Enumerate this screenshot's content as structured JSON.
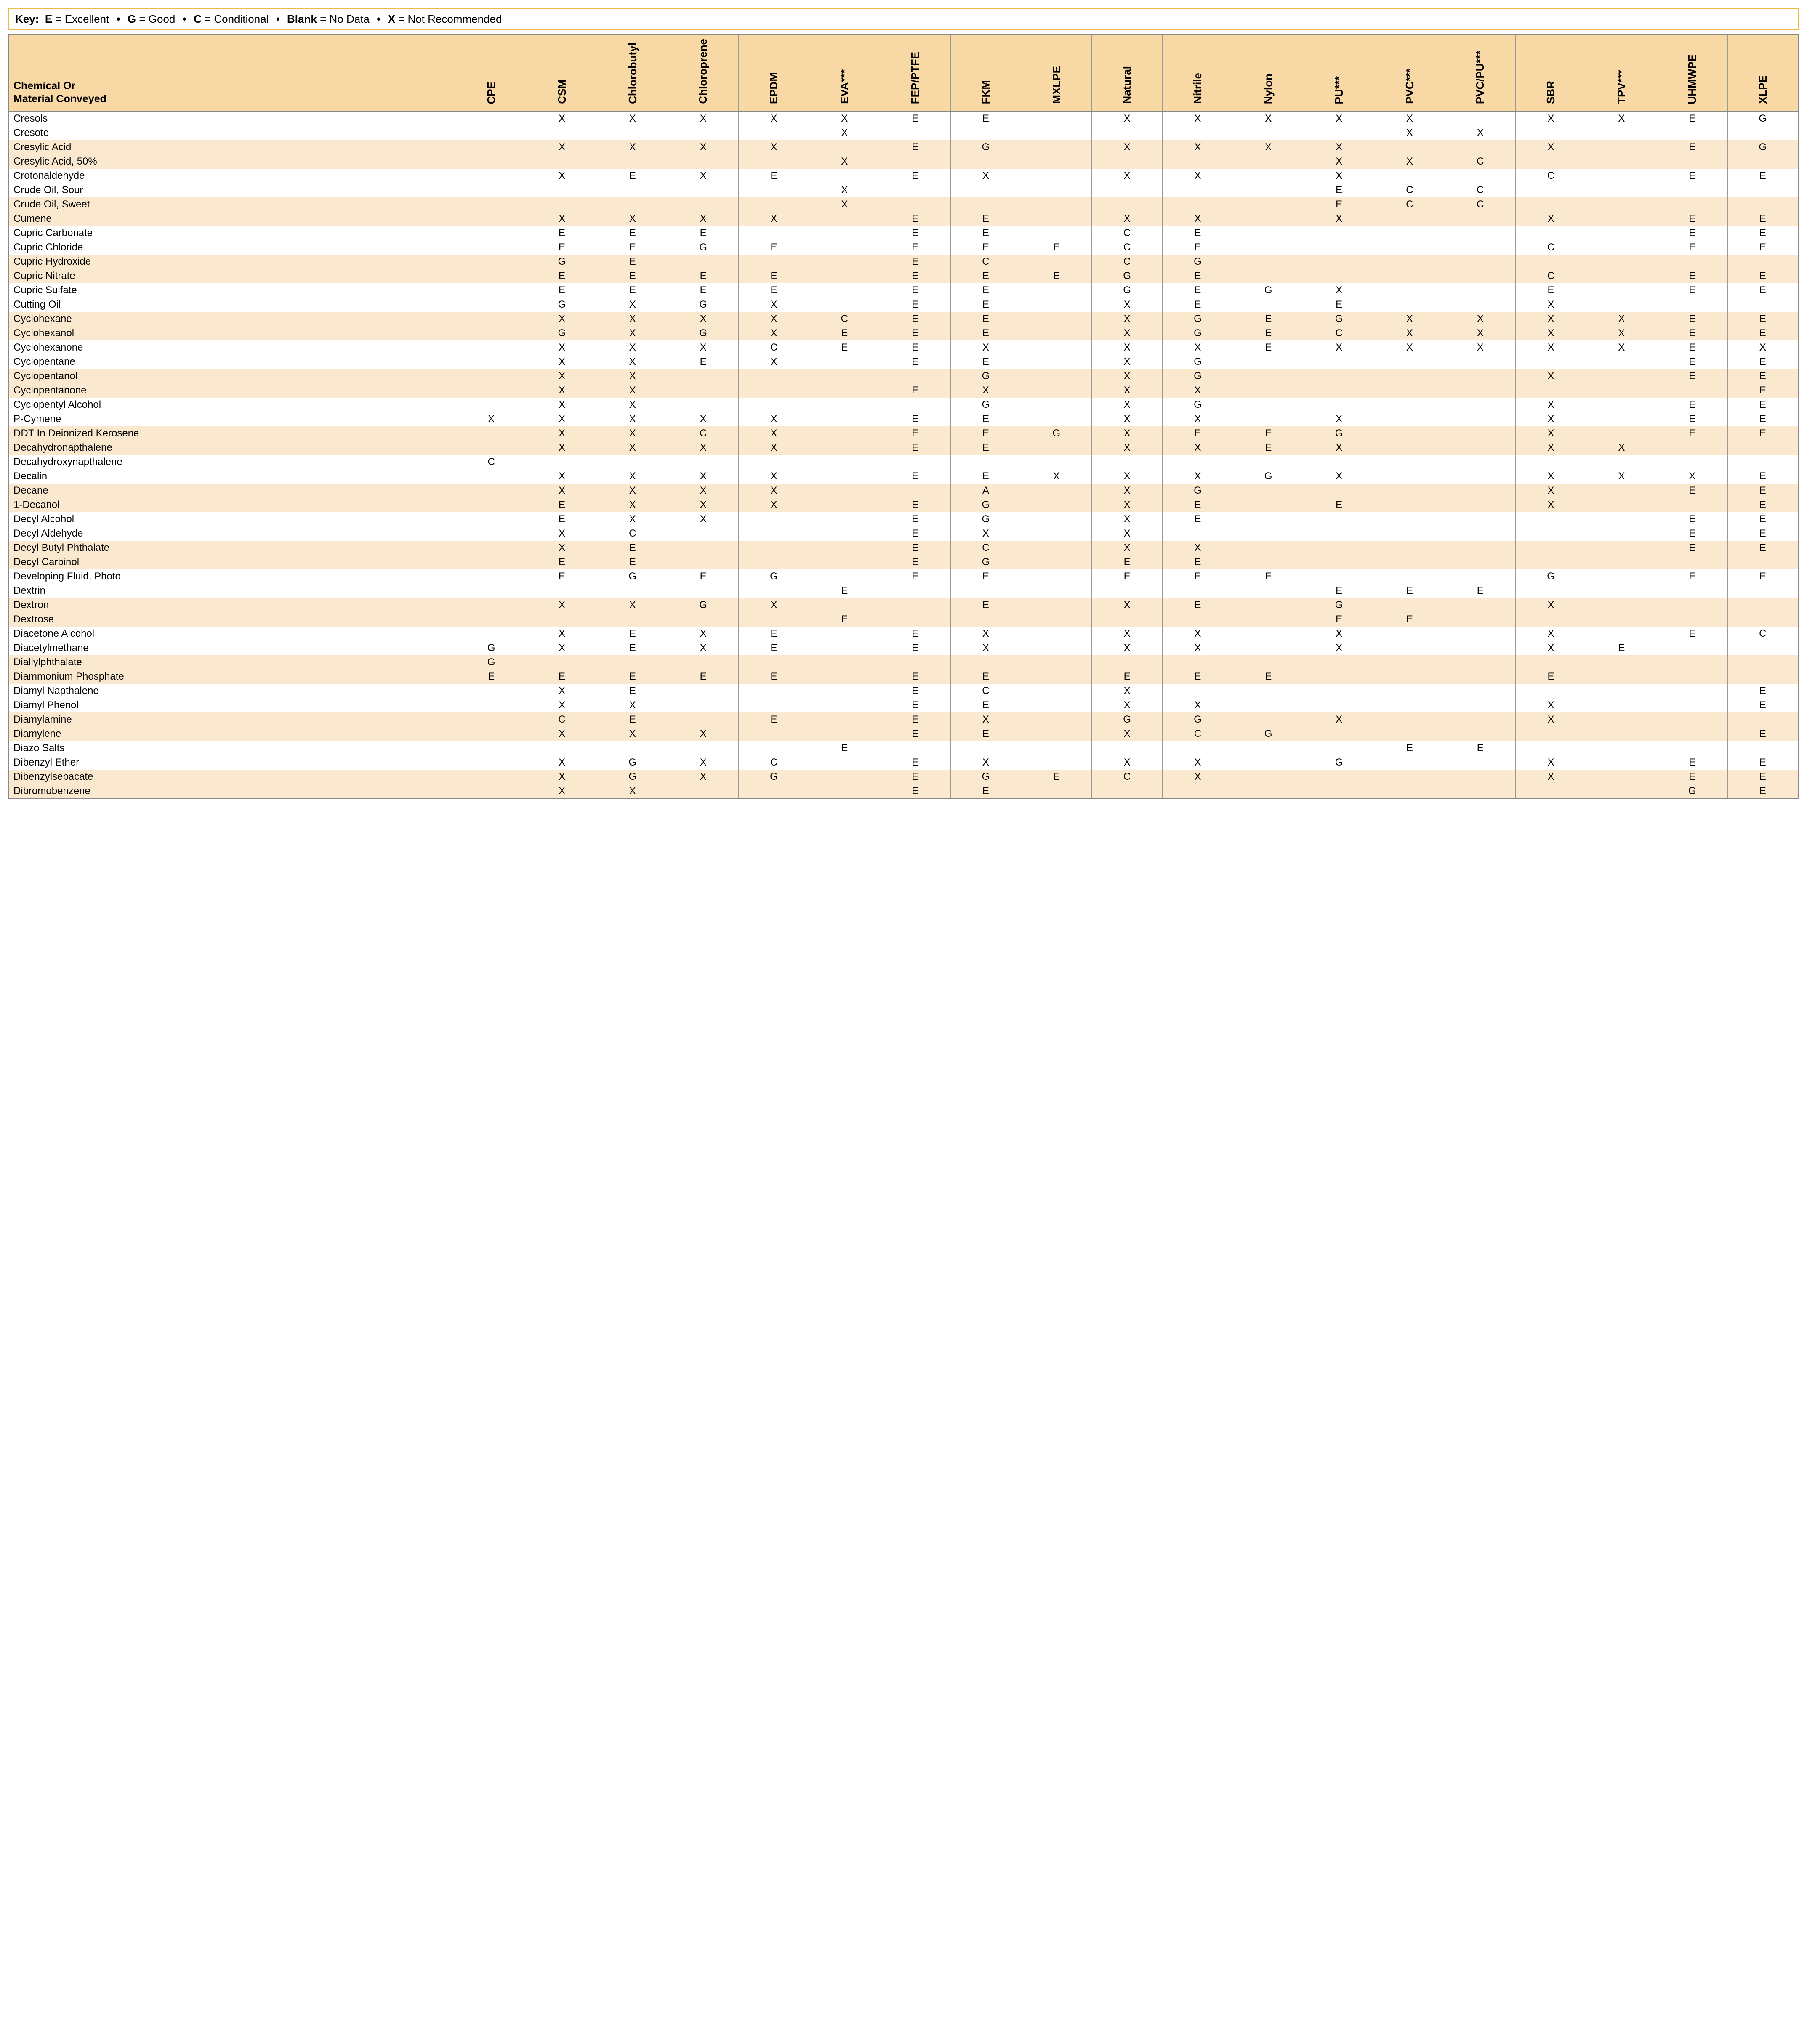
{
  "key": {
    "label": "Key:",
    "items": [
      {
        "code": "E",
        "text": "Excellent"
      },
      {
        "code": "G",
        "text": "Good"
      },
      {
        "code": "C",
        "text": "Conditional"
      },
      {
        "code": "Blank",
        "text": "No Data"
      },
      {
        "code": "X",
        "text": "Not Recommended"
      }
    ]
  },
  "header_title_line1": "Chemical Or",
  "header_title_line2": "Material Conveyed",
  "columns": [
    "CPE",
    "CSM",
    "Chlorobutyl",
    "Chloroprene",
    "EPDM",
    "EVA***",
    "FEP/PTFE",
    "FKM",
    "MXLPE",
    "Natural",
    "Nitrile",
    "Nylon",
    "PU***",
    "PVC***",
    "PVC/PU***",
    "SBR",
    "TPV***",
    "UHMWPE",
    "XLPE"
  ],
  "rows": [
    {
      "name": "Cresols",
      "v": [
        "",
        "X",
        "X",
        "X",
        "X",
        "X",
        "E",
        "E",
        "",
        "X",
        "X",
        "X",
        "X",
        "X",
        "",
        "X",
        "X",
        "E",
        "G"
      ]
    },
    {
      "name": "Cresote",
      "v": [
        "",
        "",
        "",
        "",
        "",
        "X",
        "",
        "",
        "",
        "",
        "",
        "",
        "",
        "X",
        "X",
        "",
        "",
        "",
        ""
      ]
    },
    {
      "name": "Cresylic Acid",
      "v": [
        "",
        "X",
        "X",
        "X",
        "X",
        "",
        "E",
        "G",
        "",
        "X",
        "X",
        "X",
        "X",
        "",
        "",
        "X",
        "",
        "E",
        "G"
      ]
    },
    {
      "name": "Cresylic Acid,  50%",
      "v": [
        "",
        "",
        "",
        "",
        "",
        "X",
        "",
        "",
        "",
        "",
        "",
        "",
        "X",
        "X",
        "C",
        "",
        "",
        "",
        ""
      ]
    },
    {
      "name": "Crotonaldehyde",
      "v": [
        "",
        "X",
        "E",
        "X",
        "E",
        "",
        "E",
        "X",
        "",
        "X",
        "X",
        "",
        "X",
        "",
        "",
        "C",
        "",
        "E",
        "E"
      ]
    },
    {
      "name": "Crude Oil, Sour",
      "v": [
        "",
        "",
        "",
        "",
        "",
        "X",
        "",
        "",
        "",
        "",
        "",
        "",
        "E",
        "C",
        "C",
        "",
        "",
        "",
        ""
      ]
    },
    {
      "name": "Crude Oil, Sweet",
      "v": [
        "",
        "",
        "",
        "",
        "",
        "X",
        "",
        "",
        "",
        "",
        "",
        "",
        "E",
        "C",
        "C",
        "",
        "",
        "",
        ""
      ]
    },
    {
      "name": "Cumene",
      "v": [
        "",
        "X",
        "X",
        "X",
        "X",
        "",
        "E",
        "E",
        "",
        "X",
        "X",
        "",
        "X",
        "",
        "",
        "X",
        "",
        "E",
        "E"
      ]
    },
    {
      "name": "Cupric Carbonate",
      "v": [
        "",
        "E",
        "E",
        "E",
        "",
        "",
        "E",
        "E",
        "",
        "C",
        "E",
        "",
        "",
        "",
        "",
        "",
        "",
        "E",
        "E"
      ]
    },
    {
      "name": "Cupric Chloride",
      "v": [
        "",
        "E",
        "E",
        "G",
        "E",
        "",
        "E",
        "E",
        "E",
        "C",
        "E",
        "",
        "",
        "",
        "",
        "C",
        "",
        "E",
        "E"
      ]
    },
    {
      "name": "Cupric Hydroxide",
      "v": [
        "",
        "G",
        "E",
        "",
        "",
        "",
        "E",
        "C",
        "",
        "C",
        "G",
        "",
        "",
        "",
        "",
        "",
        "",
        "",
        ""
      ]
    },
    {
      "name": "Cupric Nitrate",
      "v": [
        "",
        "E",
        "E",
        "E",
        "E",
        "",
        "E",
        "E",
        "E",
        "G",
        "E",
        "",
        "",
        "",
        "",
        "C",
        "",
        "E",
        "E"
      ]
    },
    {
      "name": "Cupric Sulfate",
      "v": [
        "",
        "E",
        "E",
        "E",
        "E",
        "",
        "E",
        "E",
        "",
        "G",
        "E",
        "G",
        "X",
        "",
        "",
        "E",
        "",
        "E",
        "E"
      ]
    },
    {
      "name": "Cutting Oil",
      "v": [
        "",
        "G",
        "X",
        "G",
        "X",
        "",
        "E",
        "E",
        "",
        "X",
        "E",
        "",
        "E",
        "",
        "",
        "X",
        "",
        "",
        ""
      ]
    },
    {
      "name": "Cyclohexane",
      "v": [
        "",
        "X",
        "X",
        "X",
        "X",
        "C",
        "E",
        "E",
        "",
        "X",
        "G",
        "E",
        "G",
        "X",
        "X",
        "X",
        "X",
        "E",
        "E"
      ]
    },
    {
      "name": "Cyclohexanol",
      "v": [
        "",
        "G",
        "X",
        "G",
        "X",
        "E",
        "E",
        "E",
        "",
        "X",
        "G",
        "E",
        "C",
        "X",
        "X",
        "X",
        "X",
        "E",
        "E"
      ]
    },
    {
      "name": "Cyclohexanone",
      "v": [
        "",
        "X",
        "X",
        "X",
        "C",
        "E",
        "E",
        "X",
        "",
        "X",
        "X",
        "E",
        "X",
        "X",
        "X",
        "X",
        "X",
        "E",
        "X"
      ]
    },
    {
      "name": "Cyclopentane",
      "v": [
        "",
        "X",
        "X",
        "E",
        "X",
        "",
        "E",
        "E",
        "",
        "X",
        "G",
        "",
        "",
        "",
        "",
        "",
        "",
        "E",
        "E"
      ]
    },
    {
      "name": "Cyclopentanol",
      "v": [
        "",
        "X",
        "X",
        "",
        "",
        "",
        "",
        "G",
        "",
        "X",
        "G",
        "",
        "",
        "",
        "",
        "X",
        "",
        "E",
        "E"
      ]
    },
    {
      "name": "Cyclopentanone",
      "v": [
        "",
        "X",
        "X",
        "",
        "",
        "",
        "E",
        "X",
        "",
        "X",
        "X",
        "",
        "",
        "",
        "",
        "",
        "",
        "",
        "E"
      ]
    },
    {
      "name": "Cyclopentyl Alcohol",
      "v": [
        "",
        "X",
        "X",
        "",
        "",
        "",
        "",
        "G",
        "",
        "X",
        "G",
        "",
        "",
        "",
        "",
        "X",
        "",
        "E",
        "E"
      ]
    },
    {
      "name": "P-Cymene",
      "v": [
        "X",
        "X",
        "X",
        "X",
        "X",
        "",
        "E",
        "E",
        "",
        "X",
        "X",
        "",
        "X",
        "",
        "",
        "X",
        "",
        "E",
        "E"
      ]
    },
    {
      "name": "DDT In Deionized Kerosene",
      "v": [
        "",
        "X",
        "X",
        "C",
        "X",
        "",
        "E",
        "E",
        "G",
        "X",
        "E",
        "E",
        "G",
        "",
        "",
        "X",
        "",
        "E",
        "E"
      ]
    },
    {
      "name": "Decahydronapthalene",
      "v": [
        "",
        "X",
        "X",
        "X",
        "X",
        "",
        "E",
        "E",
        "",
        "X",
        "X",
        "E",
        "X",
        "",
        "",
        "X",
        "X",
        "",
        ""
      ]
    },
    {
      "name": "Decahydroxynapthalene",
      "v": [
        "C",
        "",
        "",
        "",
        "",
        "",
        "",
        "",
        "",
        "",
        "",
        "",
        "",
        "",
        "",
        "",
        "",
        "",
        ""
      ]
    },
    {
      "name": "Decalin",
      "v": [
        "",
        "X",
        "X",
        "X",
        "X",
        "",
        "E",
        "E",
        "X",
        "X",
        "X",
        "G",
        "X",
        "",
        "",
        "X",
        "X",
        "X",
        "E"
      ]
    },
    {
      "name": "Decane",
      "v": [
        "",
        "X",
        "X",
        "X",
        "X",
        "",
        "",
        "A",
        "",
        "X",
        "G",
        "",
        "",
        "",
        "",
        "X",
        "",
        "E",
        "E"
      ]
    },
    {
      "name": "1-Decanol",
      "v": [
        "",
        "E",
        "X",
        "X",
        "X",
        "",
        "E",
        "G",
        "",
        "X",
        "E",
        "",
        "E",
        "",
        "",
        "X",
        "",
        "",
        "E"
      ]
    },
    {
      "name": "Decyl Alcohol",
      "v": [
        "",
        "E",
        "X",
        "X",
        "",
        "",
        "E",
        "G",
        "",
        "X",
        "E",
        "",
        "",
        "",
        "",
        "",
        "",
        "E",
        "E"
      ]
    },
    {
      "name": "Decyl Aldehyde",
      "v": [
        "",
        "X",
        "C",
        "",
        "",
        "",
        "E",
        "X",
        "",
        "X",
        "",
        "",
        "",
        "",
        "",
        "",
        "",
        "E",
        "E"
      ]
    },
    {
      "name": "Decyl Butyl Phthalate",
      "v": [
        "",
        "X",
        "E",
        "",
        "",
        "",
        "E",
        "C",
        "",
        "X",
        "X",
        "",
        "",
        "",
        "",
        "",
        "",
        "E",
        "E"
      ]
    },
    {
      "name": "Decyl Carbinol",
      "v": [
        "",
        "E",
        "E",
        "",
        "",
        "",
        "E",
        "G",
        "",
        "E",
        "E",
        "",
        "",
        "",
        "",
        "",
        "",
        "",
        ""
      ]
    },
    {
      "name": "Developing Fluid, Photo",
      "v": [
        "",
        "E",
        "G",
        "E",
        "G",
        "",
        "E",
        "E",
        "",
        "E",
        "E",
        "E",
        "",
        "",
        "",
        "G",
        "",
        "E",
        "E"
      ]
    },
    {
      "name": "Dextrin",
      "v": [
        "",
        "",
        "",
        "",
        "",
        "E",
        "",
        "",
        "",
        "",
        "",
        "",
        "E",
        "E",
        "E",
        "",
        "",
        "",
        ""
      ]
    },
    {
      "name": "Dextron",
      "v": [
        "",
        "X",
        "X",
        "G",
        "X",
        "",
        "",
        "E",
        "",
        "X",
        "E",
        "",
        "G",
        "",
        "",
        "X",
        "",
        "",
        ""
      ]
    },
    {
      "name": "Dextrose",
      "v": [
        "",
        "",
        "",
        "",
        "",
        "E",
        "",
        "",
        "",
        "",
        "",
        "",
        "E",
        "E",
        "",
        "",
        "",
        "",
        ""
      ]
    },
    {
      "name": "Diacetone Alcohol",
      "v": [
        "",
        "X",
        "E",
        "X",
        "E",
        "",
        "E",
        "X",
        "",
        "X",
        "X",
        "",
        "X",
        "",
        "",
        "X",
        "",
        "E",
        "C"
      ]
    },
    {
      "name": "Diacetylmethane",
      "v": [
        "G",
        "X",
        "E",
        "X",
        "E",
        "",
        "E",
        "X",
        "",
        "X",
        "X",
        "",
        "X",
        "",
        "",
        "X",
        "E",
        "",
        ""
      ]
    },
    {
      "name": "Diallylphthalate",
      "v": [
        "G",
        "",
        "",
        "",
        "",
        "",
        "",
        "",
        "",
        "",
        "",
        "",
        "",
        "",
        "",
        "",
        "",
        "",
        ""
      ]
    },
    {
      "name": "Diammonium Phosphate",
      "v": [
        "E",
        "E",
        "E",
        "E",
        "E",
        "",
        "E",
        "E",
        "",
        "E",
        "E",
        "E",
        "",
        "",
        "",
        "E",
        "",
        "",
        ""
      ]
    },
    {
      "name": "Diamyl Napthalene",
      "v": [
        "",
        "X",
        "E",
        "",
        "",
        "",
        "E",
        "C",
        "",
        "X",
        "",
        "",
        "",
        "",
        "",
        "",
        "",
        "",
        "E"
      ]
    },
    {
      "name": "Diamyl Phenol",
      "v": [
        "",
        "X",
        "X",
        "",
        "",
        "",
        "E",
        "E",
        "",
        "X",
        "X",
        "",
        "",
        "",
        "",
        "X",
        "",
        "",
        "E"
      ]
    },
    {
      "name": "Diamylamine",
      "v": [
        "",
        "C",
        "E",
        "",
        "E",
        "",
        "E",
        "X",
        "",
        "G",
        "G",
        "",
        "X",
        "",
        "",
        "X",
        "",
        "",
        ""
      ]
    },
    {
      "name": "Diamylene",
      "v": [
        "",
        "X",
        "X",
        "X",
        "",
        "",
        "E",
        "E",
        "",
        "X",
        "C",
        "G",
        "",
        "",
        "",
        "",
        "",
        "",
        "E"
      ]
    },
    {
      "name": "Diazo Salts",
      "v": [
        "",
        "",
        "",
        "",
        "",
        "E",
        "",
        "",
        "",
        "",
        "",
        "",
        "",
        "E",
        "E",
        "",
        "",
        "",
        ""
      ]
    },
    {
      "name": "Dibenzyl Ether",
      "v": [
        "",
        "X",
        "G",
        "X",
        "C",
        "",
        "E",
        "X",
        "",
        "X",
        "X",
        "",
        "G",
        "",
        "",
        "X",
        "",
        "E",
        "E"
      ]
    },
    {
      "name": "Dibenzylsebacate",
      "v": [
        "",
        "X",
        "G",
        "X",
        "G",
        "",
        "E",
        "G",
        "E",
        "C",
        "X",
        "",
        "",
        "",
        "",
        "X",
        "",
        "E",
        "E"
      ]
    },
    {
      "name": "Dibromobenzene",
      "v": [
        "",
        "X",
        "X",
        "",
        "",
        "",
        "E",
        "E",
        "",
        "",
        "",
        "",
        "",
        "",
        "",
        "",
        "",
        "G",
        "E"
      ]
    }
  ],
  "style": {
    "header_bg": "#f8d9a6",
    "stripe_bg": "#fbe9cf",
    "border_color": "#888888",
    "key_border": "#f5b547",
    "font_family": "Helvetica, Arial, sans-serif"
  }
}
